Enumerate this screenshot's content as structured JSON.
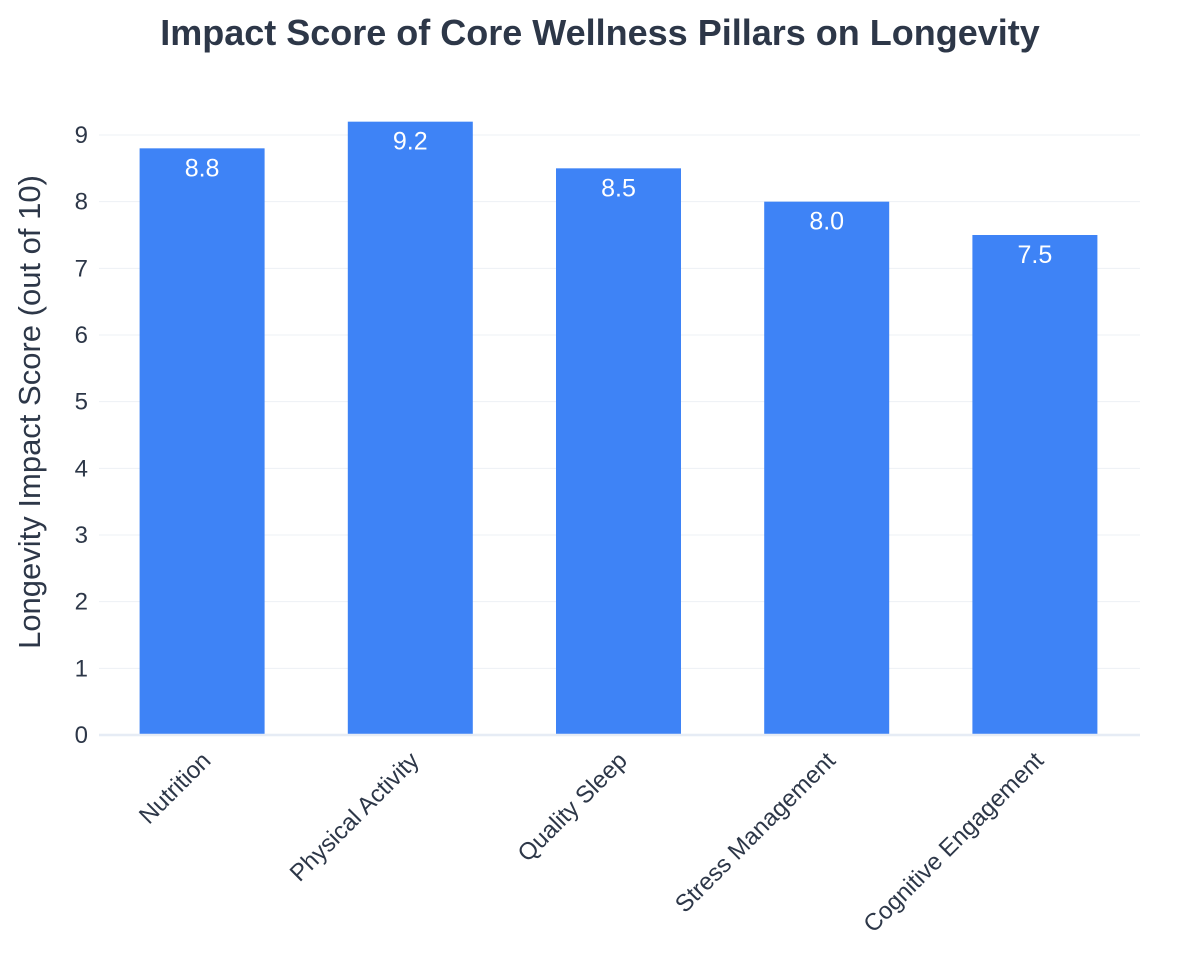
{
  "chart_data": {
    "type": "bar",
    "title": "Impact Score of Core Wellness Pillars on Longevity",
    "xlabel": "",
    "ylabel": "Longevity Impact Score (out of 10)",
    "categories": [
      "Nutrition",
      "Physical Activity",
      "Quality Sleep",
      "Stress Management",
      "Cognitive Engagement"
    ],
    "values": [
      8.8,
      9.2,
      8.5,
      8.0,
      7.5
    ],
    "data_labels": [
      "8.8",
      "9.2",
      "8.5",
      "8.0",
      "7.5"
    ],
    "yticks": [
      "0",
      "1",
      "2",
      "3",
      "4",
      "5",
      "6",
      "7",
      "8",
      "9"
    ],
    "ylim": [
      0,
      9.6
    ],
    "grid": true,
    "legend": "none",
    "bar_color": "#3e83f6"
  }
}
